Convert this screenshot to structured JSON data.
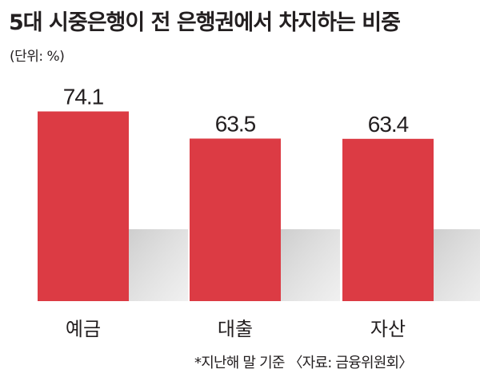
{
  "title": "5대 시중은행이 전 은행권에서 차지하는 비중",
  "unit": "(단위: %)",
  "source": "*지난해 말 기준 〈자료: 금융위원회〉",
  "chart_data": {
    "type": "bar",
    "categories": [
      "예금",
      "대출",
      "자산"
    ],
    "values": [
      74.1,
      63.5,
      63.4
    ],
    "value_labels": [
      "74.1",
      "63.5",
      "63.4"
    ],
    "title": "5대 시중은행이 전 은행권에서 차지하는 비중",
    "ylim": [
      0,
      100
    ],
    "grid": false,
    "legend": "none",
    "bar_color": "#dc3b44",
    "shadow_color": "#d2d2d2"
  }
}
